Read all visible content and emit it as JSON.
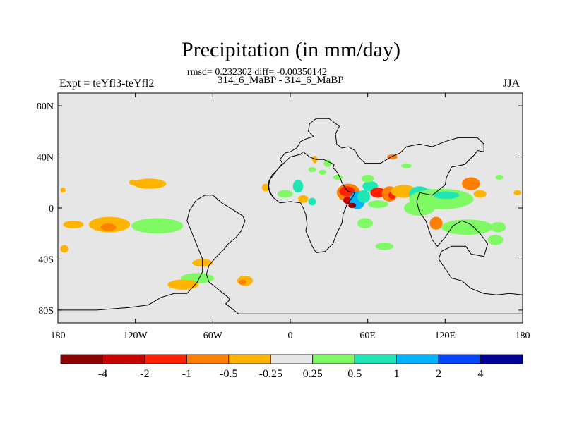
{
  "figure": {
    "title": "Precipitation (in mm/day)",
    "stats": "rmsd= 0.232302 diff= -0.00350142",
    "subtitle": "314_6_MaBP - 314_6_MaBP",
    "left_label": "Expt = teYfl3-teYfl2",
    "right_label": "JJA"
  },
  "axes": {
    "lon_ticks": [
      "180",
      "120W",
      "60W",
      "0",
      "60E",
      "120E",
      "180"
    ],
    "lat_ticks": [
      "80N",
      "40N",
      "0",
      "40S",
      "80S"
    ],
    "lon_range": [
      -180,
      180
    ],
    "lat_range": [
      -90,
      90
    ]
  },
  "colorbar": {
    "labels": [
      "-4",
      "-2",
      "-1",
      "-0.5",
      "-0.25",
      "0.25",
      "0.5",
      "1",
      "2",
      "4"
    ],
    "colors": [
      "#8b0000",
      "#c80000",
      "#ff2000",
      "#ff7f00",
      "#ffb400",
      "#e6e6e6",
      "#7ffa64",
      "#1ee6b4",
      "#00b4ff",
      "#0046ff",
      "#000096"
    ]
  },
  "chart_data": {
    "type": "heatmap",
    "variable": "Precipitation difference",
    "units": "mm/day",
    "season": "JJA",
    "levels": [
      -4,
      -2,
      -1,
      -0.5,
      -0.25,
      0.25,
      0.5,
      1,
      2,
      4
    ],
    "features": [
      {
        "lon": -109,
        "lat": 19,
        "rx": 13,
        "ry": 4,
        "value": -0.3
      },
      {
        "lon": -122,
        "lat": 20,
        "rx": 3,
        "ry": 2,
        "value": -0.3
      },
      {
        "lon": -176,
        "lat": 14,
        "rx": 2,
        "ry": 2,
        "value": -0.3
      },
      {
        "lon": -103,
        "lat": -14,
        "rx": 20,
        "ry": 6,
        "value": 0.3
      },
      {
        "lon": -140,
        "lat": -13,
        "rx": 16,
        "ry": 6,
        "value": -0.3
      },
      {
        "lon": -141,
        "lat": -15,
        "rx": 6,
        "ry": 3,
        "value": -0.6
      },
      {
        "lon": -168,
        "lat": -13,
        "rx": 8,
        "ry": 3,
        "value": -0.3
      },
      {
        "lon": -175,
        "lat": -32,
        "rx": 3,
        "ry": 3,
        "value": -0.3
      },
      {
        "lon": -68,
        "lat": -43,
        "rx": 8,
        "ry": 3,
        "value": -0.3
      },
      {
        "lon": -72,
        "lat": -55,
        "rx": 13,
        "ry": 4,
        "value": 0.3
      },
      {
        "lon": -83,
        "lat": -60,
        "rx": 12,
        "ry": 4,
        "value": -0.3
      },
      {
        "lon": -35,
        "lat": -57,
        "rx": 6,
        "ry": 4,
        "value": -0.3
      },
      {
        "lon": -37,
        "lat": -58,
        "rx": 3,
        "ry": 2,
        "value": -0.6
      },
      {
        "lon": -19,
        "lat": 16,
        "rx": 3,
        "ry": 3,
        "value": -0.3
      },
      {
        "lon": -4,
        "lat": 11,
        "rx": 6,
        "ry": 3,
        "value": 0.3
      },
      {
        "lon": 6,
        "lat": 17,
        "rx": 4,
        "ry": 5,
        "value": 0.6
      },
      {
        "lon": 10,
        "lat": 7,
        "rx": 4,
        "ry": 3,
        "value": -0.3
      },
      {
        "lon": 17,
        "lat": 5,
        "rx": 3,
        "ry": 3,
        "value": 0.6
      },
      {
        "lon": 19,
        "lat": 38,
        "rx": 2,
        "ry": 3,
        "value": -0.3
      },
      {
        "lon": 25,
        "lat": 28,
        "rx": 3,
        "ry": 2,
        "value": 0.3
      },
      {
        "lon": 45,
        "lat": 12,
        "rx": 9,
        "ry": 7,
        "value": -0.6
      },
      {
        "lon": 44,
        "lat": 13,
        "rx": 6,
        "ry": 4,
        "value": -1.5
      },
      {
        "lon": 45,
        "lat": 6,
        "rx": 4,
        "ry": 3,
        "value": -3
      },
      {
        "lon": 52,
        "lat": 6,
        "rx": 6,
        "ry": 7,
        "value": 1.5
      },
      {
        "lon": 57,
        "lat": 9,
        "rx": 5,
        "ry": 5,
        "value": 0.7
      },
      {
        "lon": 48,
        "lat": 2,
        "rx": 3,
        "ry": 2,
        "value": -5
      },
      {
        "lon": 62,
        "lat": 17,
        "rx": 6,
        "ry": 4,
        "value": 0.6
      },
      {
        "lon": 68,
        "lat": 12,
        "rx": 6,
        "ry": 4,
        "value": -1.5
      },
      {
        "lon": 68,
        "lat": 3,
        "rx": 8,
        "ry": 3,
        "value": 0.3
      },
      {
        "lon": 77,
        "lat": 11,
        "rx": 6,
        "ry": 6,
        "value": -0.6
      },
      {
        "lon": 79,
        "lat": 10,
        "rx": 3,
        "ry": 3,
        "value": -1.5
      },
      {
        "lon": 88,
        "lat": 13,
        "rx": 10,
        "ry": 5,
        "value": -0.3
      },
      {
        "lon": 60,
        "lat": 23,
        "rx": 5,
        "ry": 3,
        "value": 0.3
      },
      {
        "lon": 100,
        "lat": 11,
        "rx": 8,
        "ry": 6,
        "value": 0.6
      },
      {
        "lon": 106,
        "lat": 12,
        "rx": 7,
        "ry": 3,
        "value": 0.6
      },
      {
        "lon": 117,
        "lat": 7,
        "rx": 25,
        "ry": 8,
        "value": 0.3
      },
      {
        "lon": 121,
        "lat": 10,
        "rx": 10,
        "ry": 3,
        "value": 0.7
      },
      {
        "lon": 140,
        "lat": 19,
        "rx": 7,
        "ry": 5,
        "value": -0.6
      },
      {
        "lon": 147,
        "lat": 11,
        "rx": 5,
        "ry": 3,
        "value": -0.3
      },
      {
        "lon": 100,
        "lat": 0,
        "rx": 12,
        "ry": 6,
        "value": 0.3
      },
      {
        "lon": 113,
        "lat": -12,
        "rx": 5,
        "ry": 5,
        "value": -0.6
      },
      {
        "lon": 137,
        "lat": -15,
        "rx": 20,
        "ry": 6,
        "value": 0.3
      },
      {
        "lon": 161,
        "lat": -15,
        "rx": 6,
        "ry": 4,
        "value": 0.3
      },
      {
        "lon": 159,
        "lat": -25,
        "rx": 6,
        "ry": 4,
        "value": 0.3
      },
      {
        "lon": 176,
        "lat": 12,
        "rx": 3,
        "ry": 2,
        "value": -0.3
      },
      {
        "lon": 162,
        "lat": 24,
        "rx": 3,
        "ry": 2,
        "value": 0.3
      },
      {
        "lon": 17,
        "lat": 30,
        "rx": 3,
        "ry": 2,
        "value": 0.3
      },
      {
        "lon": 58,
        "lat": -12,
        "rx": 6,
        "ry": 4,
        "value": 0.3
      },
      {
        "lon": 73,
        "lat": -30,
        "rx": 7,
        "ry": 3,
        "value": 0.3
      },
      {
        "lon": 79,
        "lat": 40,
        "rx": 4,
        "ry": 2,
        "value": -0.6
      },
      {
        "lon": 90,
        "lat": 33,
        "rx": 4,
        "ry": 2,
        "value": 0.3
      },
      {
        "lon": 29,
        "lat": 35,
        "rx": 3,
        "ry": 3,
        "value": 0.3
      },
      {
        "lon": 37,
        "lat": 24,
        "rx": 4,
        "ry": 2,
        "value": 0.3
      }
    ],
    "land_outline": [
      [
        -180,
        -80
      ],
      [
        -150,
        -80
      ],
      [
        -125,
        -78
      ],
      [
        -110,
        -76
      ],
      [
        -100,
        -70
      ],
      [
        -90,
        -67
      ],
      [
        -80,
        -67
      ],
      [
        -72,
        -58
      ],
      [
        -68,
        -50
      ],
      [
        -68,
        -40
      ],
      [
        -72,
        -30
      ],
      [
        -76,
        -20
      ],
      [
        -80,
        -10
      ],
      [
        -78,
        -2
      ],
      [
        -73,
        6
      ],
      [
        -66,
        10
      ],
      [
        -60,
        10
      ],
      [
        -53,
        4
      ],
      [
        -45,
        -1
      ],
      [
        -37,
        -6
      ],
      [
        -35,
        -10
      ],
      [
        -38,
        -18
      ],
      [
        -42,
        -23
      ],
      [
        -48,
        -28
      ],
      [
        -52,
        -33
      ],
      [
        -57,
        -38
      ],
      [
        -63,
        -45
      ],
      [
        -65,
        -52
      ],
      [
        -63,
        -58
      ],
      [
        -48,
        -70
      ],
      [
        -47,
        -72
      ],
      [
        -50,
        -75
      ],
      [
        -45,
        -79
      ],
      [
        -40,
        -83
      ],
      [
        180,
        -83
      ],
      [
        180,
        -68
      ],
      [
        170,
        -67
      ],
      [
        160,
        -68
      ],
      [
        150,
        -67
      ],
      [
        140,
        -63
      ],
      [
        133,
        -57
      ],
      [
        125,
        -55
      ],
      [
        115,
        -40
      ],
      [
        117,
        -34
      ],
      [
        125,
        -30
      ],
      [
        131,
        -30
      ],
      [
        136,
        -30
      ],
      [
        140,
        -36
      ],
      [
        150,
        -38
      ],
      [
        153,
        -28
      ],
      [
        147,
        -20
      ],
      [
        140,
        -13
      ],
      [
        133,
        -10
      ],
      [
        126,
        -14
      ],
      [
        120,
        -23
      ],
      [
        114,
        -30
      ],
      [
        110,
        -25
      ],
      [
        105,
        -10
      ],
      [
        100,
        -3
      ],
      [
        98,
        5
      ],
      [
        100,
        12
      ],
      [
        110,
        10
      ],
      [
        120,
        18
      ],
      [
        121,
        24
      ],
      [
        125,
        32
      ],
      [
        135,
        34
      ],
      [
        143,
        42
      ],
      [
        145,
        45
      ],
      [
        150,
        44
      ],
      [
        150,
        50
      ],
      [
        145,
        55
      ],
      [
        130,
        55
      ],
      [
        120,
        52
      ],
      [
        110,
        48
      ],
      [
        100,
        50
      ],
      [
        90,
        48
      ],
      [
        85,
        43
      ],
      [
        78,
        40
      ],
      [
        70,
        35
      ],
      [
        58,
        35
      ],
      [
        53,
        40
      ],
      [
        50,
        45
      ],
      [
        45,
        48
      ],
      [
        40,
        47
      ],
      [
        36,
        50
      ],
      [
        35,
        58
      ],
      [
        38,
        64
      ],
      [
        30,
        70
      ],
      [
        20,
        70
      ],
      [
        15,
        66
      ],
      [
        14,
        60
      ],
      [
        18,
        56
      ],
      [
        12,
        54
      ],
      [
        8,
        52
      ],
      [
        5,
        47
      ],
      [
        0,
        44
      ],
      [
        -4,
        43
      ],
      [
        -8,
        38
      ],
      [
        -6,
        35
      ],
      [
        -10,
        30
      ],
      [
        -16,
        22
      ],
      [
        -17,
        15
      ],
      [
        -13,
        8
      ],
      [
        -8,
        4
      ],
      [
        0,
        5
      ],
      [
        8,
        4
      ],
      [
        10,
        0
      ],
      [
        12,
        -5
      ],
      [
        13,
        -13
      ],
      [
        12,
        -18
      ],
      [
        15,
        -25
      ],
      [
        17,
        -30
      ],
      [
        20,
        -35
      ],
      [
        27,
        -34
      ],
      [
        33,
        -28
      ],
      [
        36,
        -20
      ],
      [
        40,
        -12
      ],
      [
        41,
        -5
      ],
      [
        44,
        3
      ],
      [
        48,
        8
      ],
      [
        50,
        12
      ],
      [
        45,
        13
      ],
      [
        43,
        15
      ],
      [
        40,
        20
      ],
      [
        38,
        25
      ],
      [
        35,
        30
      ],
      [
        33,
        31
      ],
      [
        34,
        34
      ],
      [
        30,
        36
      ],
      [
        26,
        38
      ],
      [
        20,
        38
      ],
      [
        15,
        40
      ],
      [
        10,
        44
      ],
      [
        8,
        42
      ],
      [
        0,
        40
      ],
      [
        -4,
        36
      ],
      [
        -6,
        34
      ],
      [
        -10,
        30
      ],
      [
        -14,
        26
      ],
      [
        -17,
        20
      ],
      [
        -16,
        12
      ],
      [
        -13,
        8
      ]
    ]
  }
}
